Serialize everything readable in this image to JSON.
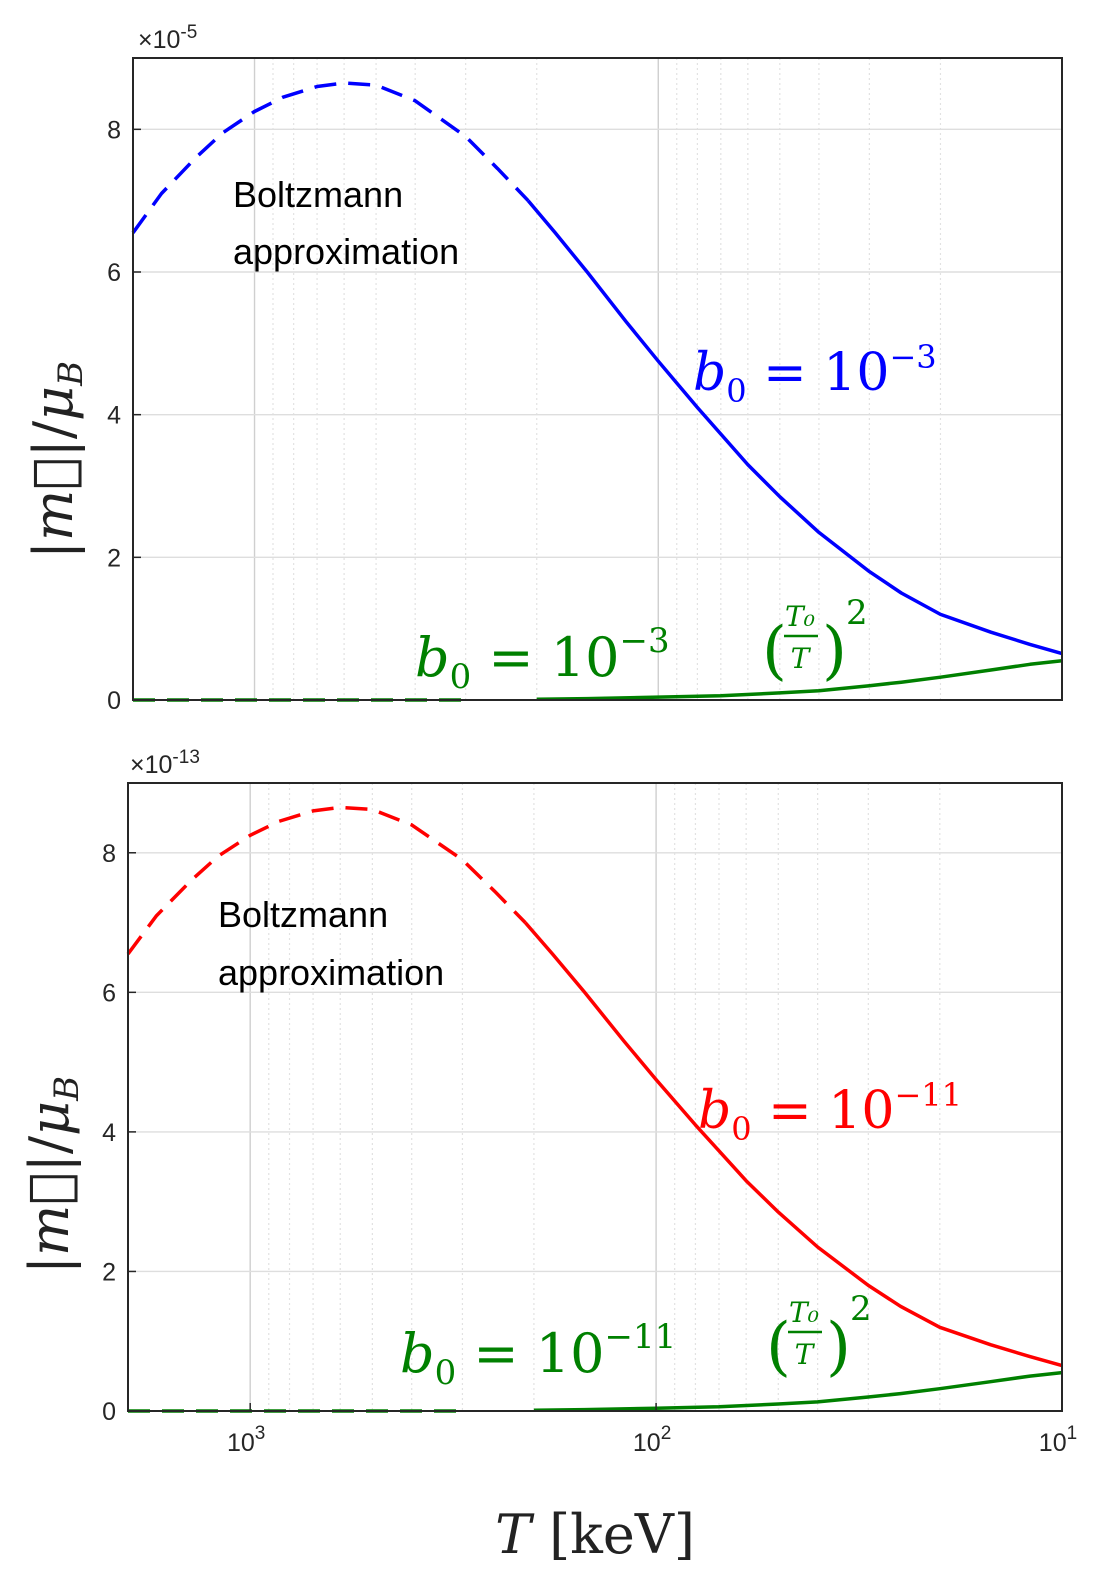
{
  "chart_data": [
    {
      "type": "line",
      "x_scale": "log",
      "x_reversed": true,
      "xlim": [
        2000,
        10
      ],
      "ylim": [
        0,
        9
      ],
      "y_exponent_label": "×10",
      "y_exponent": "-5",
      "ylabel": "|m⃗|/μB",
      "yticks": [
        0,
        2,
        4,
        6,
        8
      ],
      "grid": true,
      "annotation": [
        "Boltzmann",
        "approximation"
      ],
      "series": [
        {
          "name": "b0 = 10^-3",
          "label_parts": {
            "lhs": "b",
            "sub": "0",
            "eq": " = 10",
            "sup": "−3"
          },
          "color": "#0000ff",
          "dashed_until_T": 210,
          "x": [
            2000,
            1700,
            1400,
            1200,
            1000,
            850,
            700,
            600,
            500,
            400,
            300,
            250,
            210,
            180,
            150,
            120,
            100,
            80,
            60,
            50,
            40,
            30,
            25,
            20,
            15,
            12,
            10
          ],
          "y": [
            6.55,
            7.1,
            7.6,
            7.95,
            8.25,
            8.45,
            8.6,
            8.65,
            8.62,
            8.4,
            7.9,
            7.45,
            7.0,
            6.55,
            6.0,
            5.3,
            4.75,
            4.1,
            3.3,
            2.85,
            2.35,
            1.8,
            1.5,
            1.2,
            0.95,
            0.78,
            0.65
          ]
        },
        {
          "name": "b0 = 10^-3 (T0/T)^2",
          "label_parts": {
            "lhs": "b",
            "sub": "0",
            "eq": " = 10",
            "sup": "−3",
            "frac_num": "T₀",
            "frac_den": "T",
            "pow": "2"
          },
          "color": "#008000",
          "dashed_until_T": 210,
          "x": [
            2000,
            1000,
            500,
            300,
            200,
            150,
            100,
            70,
            50,
            40,
            30,
            25,
            20,
            15,
            12,
            10
          ],
          "y": [
            0,
            0,
            0,
            0,
            0.01,
            0.02,
            0.04,
            0.06,
            0.1,
            0.13,
            0.2,
            0.25,
            0.32,
            0.42,
            0.5,
            0.55
          ]
        }
      ]
    },
    {
      "type": "line",
      "x_scale": "log",
      "x_reversed": true,
      "xlim": [
        2000,
        10
      ],
      "ylim": [
        0,
        9
      ],
      "y_exponent_label": "×10",
      "y_exponent": "-13",
      "xlabel_var": "T",
      "xlabel_unit": "[keV]",
      "ylabel": "|m⃗|/μB",
      "yticks": [
        0,
        2,
        4,
        6,
        8
      ],
      "xticks": [
        {
          "base": "10",
          "exp": "3",
          "value": 1000
        },
        {
          "base": "10",
          "exp": "2",
          "value": 100
        },
        {
          "base": "10",
          "exp": "1",
          "value": 10
        }
      ],
      "grid": true,
      "annotation": [
        "Boltzmann",
        "approximation"
      ],
      "series": [
        {
          "name": "b0 = 10^-11",
          "label_parts": {
            "lhs": "b",
            "sub": "0",
            "eq": " = 10",
            "sup": "−11"
          },
          "color": "#ff0000",
          "dashed_until_T": 210,
          "x": [
            2000,
            1700,
            1400,
            1200,
            1000,
            850,
            700,
            600,
            500,
            400,
            300,
            250,
            210,
            180,
            150,
            120,
            100,
            80,
            60,
            50,
            40,
            30,
            25,
            20,
            15,
            12,
            10
          ],
          "y": [
            6.55,
            7.1,
            7.6,
            7.95,
            8.25,
            8.45,
            8.6,
            8.65,
            8.62,
            8.4,
            7.9,
            7.45,
            7.0,
            6.55,
            6.0,
            5.3,
            4.75,
            4.1,
            3.3,
            2.85,
            2.35,
            1.8,
            1.5,
            1.2,
            0.95,
            0.78,
            0.65
          ]
        },
        {
          "name": "b0 = 10^-11 (T0/T)^2",
          "label_parts": {
            "lhs": "b",
            "sub": "0",
            "eq": " = 10",
            "sup": "−11",
            "frac_num": "T₀",
            "frac_den": "T",
            "pow": "2"
          },
          "color": "#008000",
          "dashed_until_T": 210,
          "x": [
            2000,
            1000,
            500,
            300,
            200,
            150,
            100,
            70,
            50,
            40,
            30,
            25,
            20,
            15,
            12,
            10
          ],
          "y": [
            0,
            0,
            0,
            0,
            0.01,
            0.02,
            0.04,
            0.06,
            0.1,
            0.13,
            0.2,
            0.25,
            0.32,
            0.42,
            0.5,
            0.55
          ]
        }
      ]
    }
  ]
}
